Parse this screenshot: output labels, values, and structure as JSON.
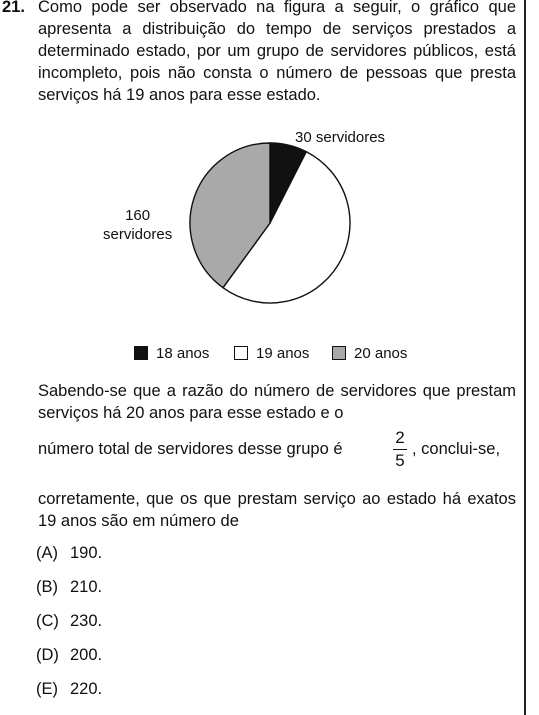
{
  "question": {
    "number": "21.",
    "intro": "Como pode ser observado na figura a seguir, o gráfico que apresenta a distribuição do tempo de serviços prestados a determinado estado, por um grupo de servidores públicos, está incompleto, pois não consta o número de pessoas que presta serviços há 19 anos para esse estado.",
    "body_1": "Sabendo-se que a razão do número de servidores que prestam serviços há 20 anos para esse estado e o",
    "body_2_pre": "número total de servidores desse grupo é",
    "fraction_num": "2",
    "fraction_den": "5",
    "body_2_post": ", conclui-se,",
    "body_3": "corretamente, que os que prestam serviço ao estado há exatos 19 anos são em número de"
  },
  "chart_data": {
    "type": "pie",
    "slices": [
      {
        "legend": "18 anos",
        "label": "30 servidores",
        "value": 30,
        "color": "#111111"
      },
      {
        "legend": "19 anos",
        "label": "",
        "value": 210,
        "color": "#ffffff"
      },
      {
        "legend": "20 anos",
        "label_line1": "160",
        "label_line2": "servidores",
        "value": 160,
        "color": "#a9a9a9"
      }
    ],
    "legend": [
      "18 anos",
      "19 anos",
      "20 anos"
    ],
    "legend_position": "bottom"
  },
  "options": [
    {
      "letter": "(A)",
      "text": "190."
    },
    {
      "letter": "(B)",
      "text": "210."
    },
    {
      "letter": "(C)",
      "text": "230."
    },
    {
      "letter": "(D)",
      "text": "200."
    },
    {
      "letter": "(E)",
      "text": "220."
    }
  ]
}
